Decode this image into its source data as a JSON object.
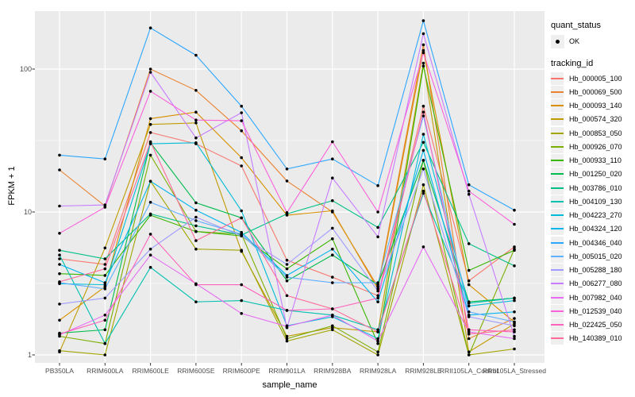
{
  "figure": {
    "x_axis_title": "sample_name",
    "y_axis_title": "FPKM + 1"
  },
  "legend": {
    "quant_status_title": "quant_status",
    "quant_status_entries": [
      {
        "label": "OK",
        "marker": "black-point"
      }
    ],
    "tracking_id_title": "tracking_id"
  },
  "chart_data": {
    "type": "line",
    "title": "",
    "xlabel": "sample_name",
    "ylabel": "FPKM + 1",
    "y_scale": "log10",
    "ylim": [
      0.88,
      254
    ],
    "grid": "on",
    "panel_background": "#ebebeb",
    "gridline_color": "#ffffff",
    "point_color": "#000000",
    "legend_position": "right",
    "x_categories": [
      "PB350LA",
      "RRIM600LA",
      "RRIM600LE",
      "RRIM600SE",
      "RRIM600PE",
      "RRIM901LA",
      "RRIM928BA",
      "RRIM928LA",
      "RRIM928LE",
      "RRII105LA_Control",
      "RRII105LA_Stressed"
    ],
    "y_ticks": [
      {
        "value": 1,
        "label": "1"
      },
      {
        "value": 10,
        "label": "10"
      },
      {
        "value": 100,
        "label": "100"
      }
    ],
    "y_minor_gridlines": [
      3.1623,
      31.623
    ],
    "series": [
      {
        "tracking_id": "Hb_000005_100",
        "quant_status": "OK",
        "color": "#F8766D",
        "values": [
          4.7,
          4.3,
          36,
          30,
          21,
          4.6,
          3.5,
          2.6,
          55,
          3.3,
          5.7
        ]
      },
      {
        "tracking_id": "Hb_000069_500",
        "quant_status": "OK",
        "color": "#EA8331",
        "values": [
          19.7,
          11,
          100,
          71,
          37,
          16.5,
          10,
          3.0,
          148,
          1.3,
          1.8
        ]
      },
      {
        "tracking_id": "Hb_000093_140",
        "quant_status": "OK",
        "color": "#D89000",
        "values": [
          1.75,
          3.0,
          45,
          50,
          24,
          9.5,
          10.2,
          2.9,
          135,
          3.1,
          1.7
        ]
      },
      {
        "tracking_id": "Hb_000574_320",
        "quant_status": "OK",
        "color": "#C09B00",
        "values": [
          1.05,
          5.6,
          41,
          42,
          5.3,
          1.35,
          1.55,
          1.45,
          110,
          1.05,
          1.65
        ]
      },
      {
        "tracking_id": "Hb_000853_050",
        "quant_status": "OK",
        "color": "#A3A500",
        "values": [
          1.07,
          1.0,
          16.4,
          5.5,
          5.4,
          1.25,
          1.5,
          1.0,
          15.5,
          1.0,
          1.1
        ]
      },
      {
        "tracking_id": "Hb_000926_070",
        "quant_status": "OK",
        "color": "#7CAE00",
        "values": [
          1.35,
          1.2,
          25,
          7.3,
          7.0,
          1.3,
          1.6,
          1.05,
          23,
          1.0,
          5.5
        ]
      },
      {
        "tracking_id": "Hb_000933_110",
        "quant_status": "OK",
        "color": "#39B600",
        "values": [
          3.7,
          3.6,
          9.5,
          7.3,
          6.8,
          4.0,
          6.5,
          1.2,
          105,
          3.9,
          5.4
        ]
      },
      {
        "tracking_id": "Hb_001250_020",
        "quant_status": "OK",
        "color": "#00BB4E",
        "values": [
          1.42,
          1.5,
          30.5,
          11.6,
          9.1,
          3.3,
          5.0,
          3.1,
          23,
          2.35,
          2.5
        ]
      },
      {
        "tracking_id": "Hb_003786_010",
        "quant_status": "OK",
        "color": "#00C087",
        "values": [
          5.4,
          4.7,
          9.7,
          8.0,
          6.9,
          9.7,
          12,
          7.8,
          30.7,
          6.0,
          4.2
        ]
      },
      {
        "tracking_id": "Hb_004109_130",
        "quant_status": "OK",
        "color": "#00C0AF",
        "values": [
          5.0,
          1.2,
          4.1,
          2.35,
          2.4,
          2.05,
          1.9,
          1.5,
          13.5,
          2.3,
          2.5
        ]
      },
      {
        "tracking_id": "Hb_004223_270",
        "quant_status": "OK",
        "color": "#00BCD8",
        "values": [
          3.15,
          3.1,
          30,
          30.5,
          10.2,
          1.6,
          1.85,
          1.3,
          35,
          2.2,
          2.4
        ]
      },
      {
        "tracking_id": "Hb_004324_120",
        "quant_status": "OK",
        "color": "#00B5EE",
        "values": [
          4.3,
          3.2,
          16.4,
          10.3,
          7.2,
          3.6,
          5.5,
          2.35,
          27,
          1.9,
          2.0
        ]
      },
      {
        "tracking_id": "Hb_004346_040",
        "quant_status": "OK",
        "color": "#2CA7FF",
        "values": [
          25,
          23.5,
          194,
          125,
          55,
          20,
          23.5,
          15.3,
          218,
          15.5,
          10.3
        ]
      },
      {
        "tracking_id": "Hb_005015_020",
        "quant_status": "OK",
        "color": "#61AFFF",
        "values": [
          3.2,
          2.9,
          11.7,
          8.7,
          7.0,
          3.5,
          3.2,
          3.2,
          47,
          2.0,
          1.7
        ]
      },
      {
        "tracking_id": "Hb_005288_180",
        "quant_status": "OK",
        "color": "#9F9BFF",
        "values": [
          2.27,
          2.5,
          5.5,
          9.2,
          6.8,
          4.3,
          7.7,
          2.8,
          20,
          1.85,
          1.6
        ]
      },
      {
        "tracking_id": "Hb_006277_080",
        "quant_status": "OK",
        "color": "#C77CFF",
        "values": [
          11,
          11.2,
          95,
          33,
          49.5,
          1.55,
          17.3,
          6.7,
          177,
          13.3,
          1.35
        ]
      },
      {
        "tracking_id": "Hb_007982_040",
        "quant_status": "OK",
        "color": "#E76BF3",
        "values": [
          1.38,
          1.9,
          5.0,
          3.15,
          1.95,
          1.58,
          1.9,
          1.25,
          5.7,
          1.45,
          1.3
        ]
      },
      {
        "tracking_id": "Hb_012539_040",
        "quant_status": "OK",
        "color": "#FA62DB",
        "values": [
          7.1,
          10.8,
          70,
          44,
          43.5,
          9.9,
          31,
          10,
          130,
          14,
          8.2
        ]
      },
      {
        "tracking_id": "Hb_022425_050",
        "quant_status": "OK",
        "color": "#FF62BC",
        "values": [
          1.4,
          1.75,
          7.0,
          3.1,
          3.1,
          2.05,
          2.1,
          2.5,
          50,
          1.5,
          1.45
        ]
      },
      {
        "tracking_id": "Hb_140389_010",
        "quant_status": "OK",
        "color": "#FF6A98",
        "values": [
          3.25,
          4.0,
          31,
          6.3,
          9.1,
          2.6,
          2.1,
          1.45,
          14,
          1.4,
          1.5
        ]
      }
    ]
  }
}
